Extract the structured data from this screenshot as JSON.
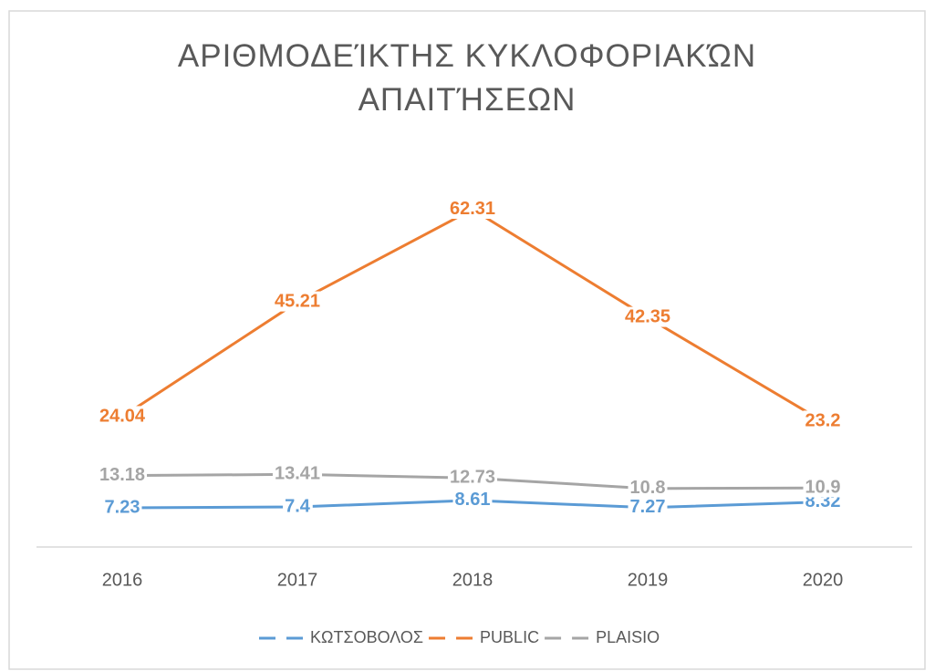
{
  "chart_data": {
    "type": "line",
    "title": "ΑΡΙΘΜΟΔΕΊΚΤΗΣ ΚΥΚΛΟΦΟΡΙΑΚΏΝ ΑΠΑΙΤΉΣΕΩΝ",
    "categories": [
      "2016",
      "2017",
      "2018",
      "2019",
      "2020"
    ],
    "series": [
      {
        "name": "ΚΩΤΣΟΒΟΛΟΣ",
        "color": "#5b9bd5",
        "values": [
          7.23,
          7.4,
          8.61,
          7.27,
          8.32
        ]
      },
      {
        "name": "PUBLIC",
        "color": "#ed7d31",
        "values": [
          24.04,
          45.21,
          62.31,
          42.35,
          23.2
        ]
      },
      {
        "name": "PLAISIO",
        "color": "#a5a5a5",
        "values": [
          13.18,
          13.41,
          12.73,
          10.8,
          10.9
        ]
      }
    ],
    "ylim": [
      0,
      70
    ],
    "legend": "bottom"
  }
}
